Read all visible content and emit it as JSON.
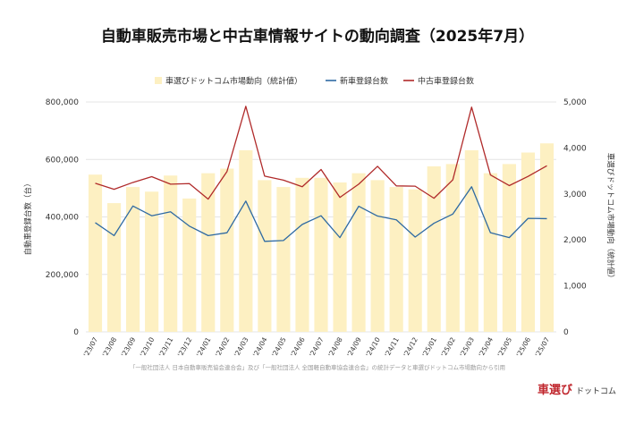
{
  "title": "自動車販売市場と中古車情報サイトの動向調査（2025年7月）",
  "legend": [
    {
      "label": "車選びドットコム市場動向（統計値）",
      "color": "#fdf0c2"
    },
    {
      "label": "新車登録台数",
      "color": "#2e6aa3"
    },
    {
      "label": "中古車登録台数",
      "color": "#b02a2a"
    }
  ],
  "y_left_label": "自動車登録台数（台）",
  "y_right_label": "車選びドットコム市場動向（統計値）",
  "y_left_ticks": [
    "0",
    "200,000",
    "400,000",
    "600,000",
    "800,000"
  ],
  "y_right_ticks": [
    "0",
    "1,000",
    "2,000",
    "3,000",
    "4,000",
    "5,000"
  ],
  "source_note": "「一般社団法人 日本自動車販売協会連合会」及び「一般社団法人 全国軽自動車協会連合会」の統計データと車選びドットコム市場動向から引用",
  "logo": {
    "main": "車選び",
    "sub": "ドットコム"
  },
  "chart_data": {
    "type": "bar+line",
    "categories": [
      "'23/07",
      "'23/08",
      "'23/09",
      "'23/10",
      "'23/11",
      "'23/12",
      "'24/01",
      "'24/02",
      "'24/03",
      "'24/04",
      "'24/05",
      "'24/06",
      "'24/07",
      "'24/08",
      "'24/09",
      "'24/10",
      "'24/11",
      "'24/12",
      "'25/01",
      "'25/02",
      "'25/03",
      "'25/04",
      "'25/05",
      "'25/06",
      "'25/07"
    ],
    "ylim_left": [
      0,
      800000
    ],
    "ylim_right": [
      0,
      5000
    ],
    "grid": true,
    "legend_position": "top",
    "series": [
      {
        "name": "車選びドットコム市場動向（統計値）",
        "type": "bar",
        "axis": "right",
        "color": "#fdf0c2",
        "values": [
          3420,
          2800,
          3150,
          3050,
          3400,
          2900,
          3450,
          3550,
          3950,
          3300,
          3150,
          3350,
          3350,
          3250,
          3450,
          3300,
          3150,
          3100,
          3600,
          3650,
          3950,
          3450,
          3650,
          3900,
          4100
        ]
      },
      {
        "name": "新車登録台数",
        "type": "line",
        "axis": "left",
        "color": "#2e6aa3",
        "values": [
          380000,
          335000,
          438000,
          404000,
          418000,
          368000,
          335000,
          345000,
          455000,
          315000,
          318000,
          374000,
          404000,
          328000,
          437000,
          403000,
          390000,
          330000,
          378000,
          410000,
          505000,
          345000,
          328000,
          395000,
          394000
        ]
      },
      {
        "name": "中古車登録台数",
        "type": "line",
        "axis": "left",
        "color": "#b02a2a",
        "values": [
          517000,
          496000,
          520000,
          540000,
          514000,
          516000,
          462000,
          558000,
          785000,
          542000,
          528000,
          505000,
          565000,
          468000,
          514000,
          576000,
          508000,
          507000,
          465000,
          529000,
          782000,
          546000,
          509000,
          541000,
          578000
        ]
      }
    ]
  }
}
